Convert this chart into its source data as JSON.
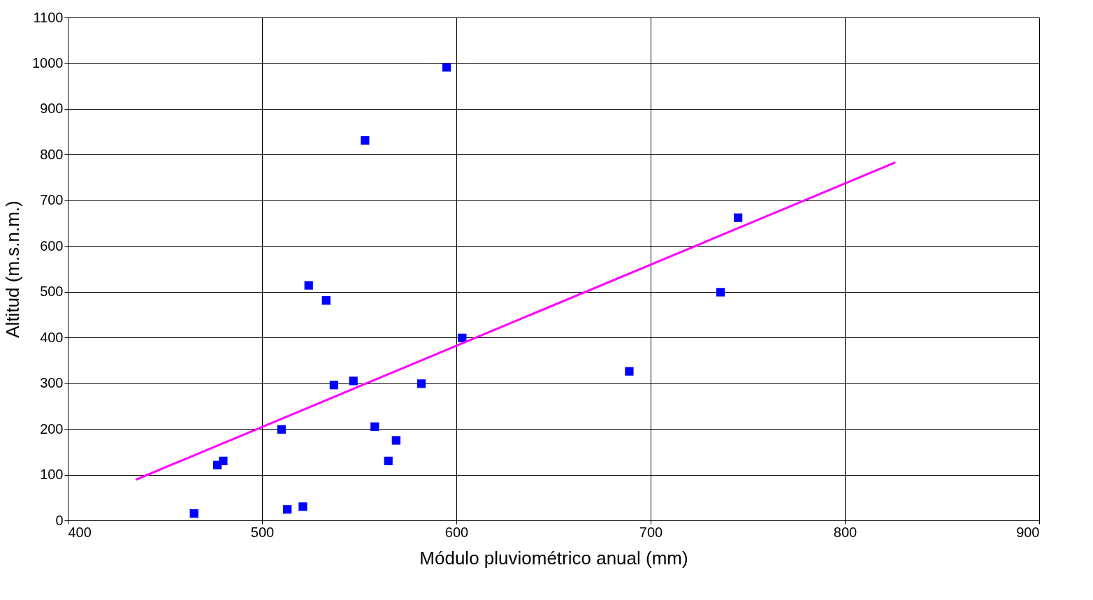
{
  "chart_data": {
    "type": "scatter",
    "xlabel": "Módulo pluviométrico anual (mm)",
    "ylabel": "Altitud (m.s.n.m.)",
    "xlim": [
      400,
      900
    ],
    "xticks": [
      400,
      500,
      600,
      700,
      800,
      900
    ],
    "ylim": [
      0,
      1100
    ],
    "yticks": [
      0,
      100,
      200,
      300,
      400,
      500,
      600,
      700,
      800,
      900,
      1000,
      1100
    ],
    "grid": true,
    "marker": "square",
    "series": [
      {
        "color": "#0000ff",
        "x": [
          465,
          477,
          480,
          510,
          513,
          521,
          524,
          533,
          537,
          547,
          553,
          558,
          565,
          569,
          582,
          595,
          603,
          689,
          736,
          745
        ],
        "values": [
          15,
          121,
          130,
          199,
          24,
          30,
          514,
          481,
          296,
          305,
          831,
          205,
          130,
          175,
          299,
          991,
          399,
          326,
          499,
          662
        ]
      },
      {
        "type": "line",
        "color": "#ff00ff",
        "marker": "none",
        "line_style": "solid",
        "x": [
          435,
          826
        ],
        "values": [
          89,
          783
        ]
      }
    ]
  }
}
